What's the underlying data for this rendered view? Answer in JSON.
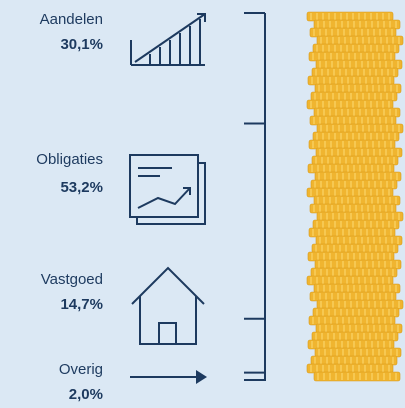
{
  "chart_data": {
    "type": "bar",
    "categories": [
      "Aandelen",
      "Obligaties",
      "Vastgoed",
      "Overig"
    ],
    "values": [
      30.1,
      53.2,
      14.7,
      2.0
    ],
    "value_labels": [
      "30,1%",
      "53,2%",
      "14,7%",
      "2,0%"
    ],
    "color": "#1d3a5f"
  }
}
